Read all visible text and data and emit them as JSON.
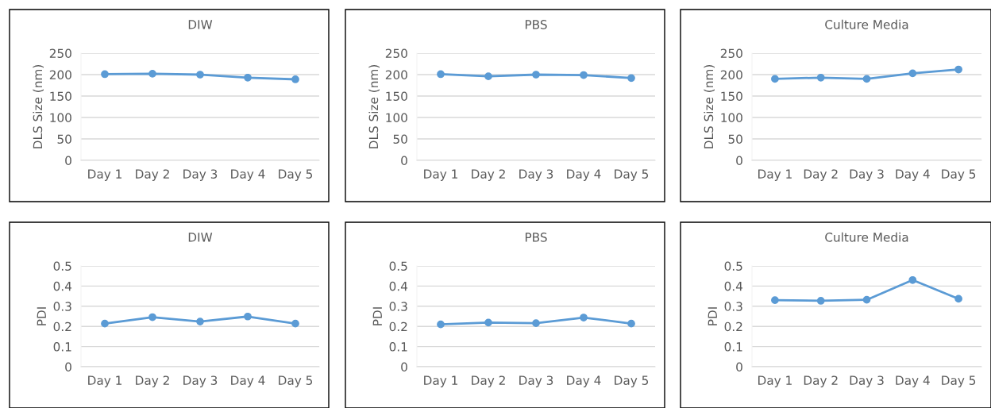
{
  "chart_data": [
    {
      "type": "line",
      "title": "DIW",
      "ylabel": "DLS Size (nm)",
      "categories": [
        "Day 1",
        "Day 2",
        "Day 3",
        "Day 4",
        "Day 5"
      ],
      "ylim": [
        0,
        250
      ],
      "yticks": [
        0,
        50,
        100,
        150,
        200,
        250
      ],
      "grid": "y",
      "marker": "circle",
      "line_style": "solid",
      "series": [
        {
          "color": "#5b9bd5",
          "values": [
            201,
            202,
            200,
            193,
            189
          ]
        }
      ]
    },
    {
      "type": "line",
      "title": "PBS",
      "ylabel": "DLS Size (nm)",
      "categories": [
        "Day 1",
        "Day 2",
        "Day 3",
        "Day 4",
        "Day 5"
      ],
      "ylim": [
        0,
        250
      ],
      "yticks": [
        0,
        50,
        100,
        150,
        200,
        250
      ],
      "grid": "y",
      "marker": "circle",
      "line_style": "solid",
      "series": [
        {
          "color": "#5b9bd5",
          "values": [
            201,
            196,
            200,
            199,
            192
          ]
        }
      ]
    },
    {
      "type": "line",
      "title": "Culture Media",
      "ylabel": "DLS Size (nm)",
      "categories": [
        "Day 1",
        "Day 2",
        "Day 3",
        "Day 4",
        "Day 5"
      ],
      "ylim": [
        0,
        250
      ],
      "yticks": [
        0,
        50,
        100,
        150,
        200,
        250
      ],
      "grid": "y",
      "marker": "circle",
      "line_style": "solid",
      "series": [
        {
          "color": "#5b9bd5",
          "values": [
            190,
            193,
            190,
            203,
            212
          ]
        }
      ]
    },
    {
      "type": "line",
      "title": "DIW",
      "ylabel": "PDI",
      "categories": [
        "Day 1",
        "Day 2",
        "Day 3",
        "Day 4",
        "Day 5"
      ],
      "ylim": [
        0,
        0.5
      ],
      "yticks": [
        0,
        0.1,
        0.2,
        0.3,
        0.4,
        0.5
      ],
      "grid": "y",
      "marker": "circle",
      "line_style": "solid",
      "series": [
        {
          "color": "#5b9bd5",
          "values": [
            0.214,
            0.246,
            0.224,
            0.249,
            0.214
          ]
        }
      ]
    },
    {
      "type": "line",
      "title": "PBS",
      "ylabel": "PDI",
      "categories": [
        "Day 1",
        "Day 2",
        "Day 3",
        "Day 4",
        "Day 5"
      ],
      "ylim": [
        0,
        0.5
      ],
      "yticks": [
        0,
        0.1,
        0.2,
        0.3,
        0.4,
        0.5
      ],
      "grid": "y",
      "marker": "circle",
      "line_style": "solid",
      "series": [
        {
          "color": "#5b9bd5",
          "values": [
            0.21,
            0.219,
            0.216,
            0.244,
            0.214
          ]
        }
      ]
    },
    {
      "type": "line",
      "title": "Culture Media",
      "ylabel": "PDI",
      "categories": [
        "Day 1",
        "Day 2",
        "Day 3",
        "Day 4",
        "Day 5"
      ],
      "ylim": [
        0,
        0.5
      ],
      "yticks": [
        0,
        0.1,
        0.2,
        0.3,
        0.4,
        0.5
      ],
      "grid": "y",
      "marker": "circle",
      "line_style": "solid",
      "series": [
        {
          "color": "#5b9bd5",
          "values": [
            0.33,
            0.327,
            0.332,
            0.43,
            0.337
          ]
        }
      ]
    }
  ]
}
